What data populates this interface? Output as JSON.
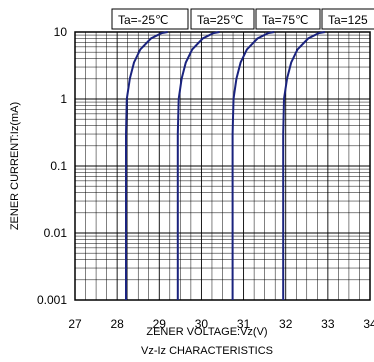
{
  "chart_data": {
    "type": "line",
    "xlabel": "ZENER VOLTAGE:Vz(V)",
    "ylabel": "ZENER CURRENT:Iz(mA)",
    "caption": "Vz-Iz CHARACTERISTICS",
    "x_scale": "linear",
    "y_scale": "log",
    "xlim": [
      27,
      34
    ],
    "ylim": [
      0.001,
      10
    ],
    "x_ticks": [
      "27",
      "28",
      "29",
      "30",
      "31",
      "32",
      "33",
      "34"
    ],
    "y_ticks": [
      "0.001",
      "0.01",
      "0.1",
      "1",
      "10"
    ],
    "grid": true,
    "legend_position": "top",
    "line_color": "#1a237e",
    "series": [
      {
        "name": "Ta=-25℃",
        "x": [
          28.21,
          28.21,
          28.23,
          28.3,
          28.4,
          28.55,
          28.8,
          29.05,
          29.2
        ],
        "y": [
          0.001,
          0.3,
          1,
          2,
          3.5,
          5.5,
          8,
          9.6,
          10
        ]
      },
      {
        "name": "Ta=25℃",
        "x": [
          29.44,
          29.44,
          29.46,
          29.53,
          29.63,
          29.78,
          30.03,
          30.28,
          30.43
        ],
        "y": [
          0.001,
          0.3,
          1,
          2,
          3.5,
          5.5,
          8,
          9.6,
          10
        ]
      },
      {
        "name": "Ta=75℃",
        "x": [
          30.74,
          30.74,
          30.76,
          30.83,
          30.93,
          31.08,
          31.33,
          31.58,
          31.73
        ],
        "y": [
          0.001,
          0.3,
          1,
          2,
          3.5,
          5.5,
          8,
          9.6,
          10
        ]
      },
      {
        "name": "Ta=125",
        "x": [
          31.94,
          31.94,
          31.96,
          32.03,
          32.13,
          32.28,
          32.53,
          32.78,
          32.93
        ],
        "y": [
          0.001,
          0.3,
          1,
          2,
          3.5,
          5.5,
          8,
          9.6,
          10
        ]
      }
    ]
  }
}
